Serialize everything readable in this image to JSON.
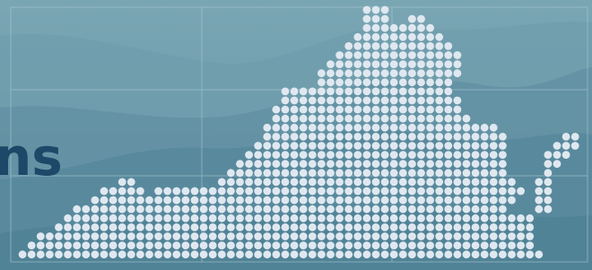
{
  "heading_fragment": "ns"
}
